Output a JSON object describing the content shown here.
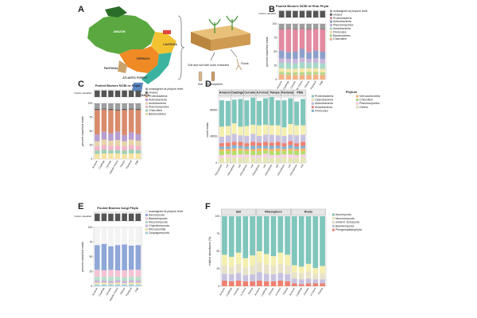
{
  "map": {
    "panel": "A",
    "labels": [
      "AMAZON",
      "CAATINGA",
      "CERRADO",
      "PANTANAL",
      "ATLANTIC FOREST",
      "PAMPA",
      "Soil and soil with roots extracted",
      "Soil",
      "Rhizosphere",
      "Roots"
    ]
  },
  "chart_data": [
    {
      "type": "stacked_bar",
      "panel": "B",
      "title": "Pooled Biomes NCBI nr+Euk Phyla",
      "ylabel": "percent classified reads",
      "categories": [
        "Amazon",
        "Caatinga",
        "Cerrado",
        "Atlantic Forest",
        "Pampa",
        "Pantanal",
        "PNB"
      ],
      "fraction_classified": {
        "label": "fraction classified",
        "ylim": [
          0,
          1
        ],
        "values": [
          0.92,
          0.93,
          0.91,
          0.92,
          0.93,
          0.92,
          0.92
        ]
      },
      "ylim": [
        0,
        100
      ],
      "yticks": [
        0,
        25,
        50,
        75,
        100
      ],
      "series": [
        {
          "name": "unassigned at phylum level",
          "color": "#9e9e9e",
          "values": [
            9,
            8,
            9,
            8,
            9,
            8,
            9
          ]
        },
        {
          "name": "viruses",
          "color": "#5c5c5c",
          "values": [
            1,
            1,
            1,
            1,
            1,
            1,
            1
          ]
        },
        {
          "name": "Proteobacteria",
          "color": "#e38aa0",
          "values": [
            38,
            42,
            40,
            36,
            41,
            39,
            40
          ]
        },
        {
          "name": "Actinobacteria",
          "color": "#8da0cb",
          "values": [
            14,
            12,
            13,
            16,
            12,
            14,
            13
          ]
        },
        {
          "name": "Planctomycetes",
          "color": "#c9b3d9",
          "values": [
            8,
            7,
            8,
            8,
            7,
            8,
            8
          ]
        },
        {
          "name": "Acidobacteria",
          "color": "#a6d8c8",
          "values": [
            10,
            11,
            10,
            11,
            10,
            10,
            10
          ]
        },
        {
          "name": "Firmicutes",
          "color": "#f7e6a5",
          "values": [
            6,
            6,
            6,
            7,
            6,
            6,
            6
          ]
        },
        {
          "name": "Bacteroidetes",
          "color": "#b8d88d",
          "values": [
            5,
            5,
            5,
            5,
            6,
            5,
            5
          ]
        },
        {
          "name": "Chloroflexi",
          "color": "#f4b183",
          "values": [
            9,
            8,
            8,
            8,
            8,
            9,
            8
          ]
        }
      ]
    },
    {
      "type": "stacked_bar",
      "panel": "C",
      "title": "Pooled Biomes NCBI nr Phyla",
      "ylabel": "percent classified reads",
      "categories": [
        "Amazon",
        "Caatinga",
        "Cerrado",
        "Atlantic Forest",
        "Pampa",
        "Pantanal",
        "PNB"
      ],
      "fraction_classified": {
        "label": "fraction classified",
        "ylim": [
          0,
          1
        ],
        "values": [
          0.9,
          0.91,
          0.9,
          0.89,
          0.9,
          0.91,
          0.9
        ]
      },
      "ylim": [
        0,
        100
      ],
      "yticks": [
        0,
        25,
        50,
        75,
        100
      ],
      "series": [
        {
          "name": "unassigned at phylum level",
          "color": "#9e9e9e",
          "values": [
            10,
            9,
            10,
            11,
            10,
            9,
            10
          ]
        },
        {
          "name": "viruses",
          "color": "#5c5c5c",
          "values": [
            2,
            2,
            2,
            2,
            2,
            2,
            2
          ]
        },
        {
          "name": "Proteobacteria",
          "color": "#d98b6b",
          "values": [
            44,
            40,
            42,
            38,
            45,
            41,
            43
          ]
        },
        {
          "name": "Actinobacteria",
          "color": "#b79ed1",
          "values": [
            12,
            14,
            13,
            15,
            11,
            13,
            12
          ]
        },
        {
          "name": "Acidobacteria",
          "color": "#e7d3a8",
          "values": [
            9,
            10,
            9,
            10,
            9,
            10,
            9
          ]
        },
        {
          "name": "Planctomycetes",
          "color": "#f2b6c6",
          "values": [
            8,
            8,
            8,
            8,
            8,
            8,
            8
          ]
        },
        {
          "name": "Chloroflexi",
          "color": "#9fcfb5",
          "values": [
            6,
            7,
            6,
            6,
            6,
            7,
            6
          ]
        },
        {
          "name": "Bacteroidetes",
          "color": "#f6e3a1",
          "values": [
            9,
            10,
            10,
            10,
            9,
            10,
            10
          ]
        }
      ]
    },
    {
      "type": "stacked_bar",
      "panel": "D",
      "legend_title": "Phylum",
      "ylabel": "count reads",
      "groups": [
        "Amazon",
        "Caatinga",
        "Cerrado",
        "A.Forest",
        "Pampa",
        "Pantanal",
        "PNB"
      ],
      "categories": [
        "rhizosphere",
        "soil",
        "rhizosphere",
        "soil",
        "rhizosphere",
        "soil",
        "rhizosphere",
        "soil",
        "rhizosphere",
        "soil",
        "rhizosphere",
        "soil",
        "rhizosphere",
        "soil"
      ],
      "ylim": [
        0,
        100000
      ],
      "yticks": [
        0,
        40000,
        80000
      ],
      "series": [
        {
          "name": "Proteobacteria",
          "color": "#7fc6bc",
          "values": [
            40000,
            38000,
            36000,
            42000,
            39000,
            41000,
            37000,
            40000,
            43000,
            38000,
            41000,
            39000,
            36000,
            40000
          ]
        },
        {
          "name": "Cyanobacteria",
          "color": "#f5f0b0",
          "values": [
            15000,
            14000,
            16000,
            13000,
            15000,
            14000,
            16000,
            15000,
            14000,
            15000,
            13000,
            16000,
            15000,
            14000
          ]
        },
        {
          "name": "Actinobacteria",
          "color": "#c8c2e0",
          "values": [
            10000,
            11000,
            12000,
            10000,
            11000,
            12000,
            10000,
            11000,
            12000,
            10000,
            11000,
            10000,
            12000,
            11000
          ]
        },
        {
          "name": "Acidobacteria",
          "color": "#f08070",
          "values": [
            5000,
            6000,
            5000,
            6000,
            5000,
            6000,
            5000,
            6000,
            5000,
            6000,
            5000,
            6000,
            5000,
            6000
          ]
        },
        {
          "name": "Firmicutes",
          "color": "#80b1d3",
          "values": [
            4000,
            4000,
            5000,
            4000,
            4000,
            5000,
            4000,
            4000,
            5000,
            4000,
            4000,
            5000,
            4000,
            4000
          ]
        },
        {
          "name": "Verrucomicrobia",
          "color": "#fdb462",
          "values": [
            3000,
            3000,
            4000,
            3000,
            3000,
            3000,
            4000,
            3000,
            3000,
            4000,
            3000,
            3000,
            3000,
            4000
          ]
        },
        {
          "name": "Chloroflexi",
          "color": "#b3de69",
          "values": [
            6000,
            5000,
            6000,
            6000,
            5000,
            6000,
            6000,
            5000,
            6000,
            6000,
            5000,
            6000,
            6000,
            5000
          ]
        },
        {
          "name": "Planctomycetes",
          "color": "#fccde5",
          "values": [
            4000,
            4000,
            4000,
            5000,
            4000,
            4000,
            4000,
            5000,
            4000,
            4000,
            4000,
            5000,
            4000,
            4000
          ]
        },
        {
          "name": "Others",
          "color": "#e5e5b5",
          "values": [
            8000,
            9000,
            8000,
            8000,
            9000,
            8000,
            8000,
            9000,
            8000,
            8000,
            9000,
            8000,
            8000,
            9000
          ]
        }
      ]
    },
    {
      "type": "stacked_bar",
      "panel": "E",
      "title": "Pooled Biomes fungi Phyla",
      "ylabel": "percent classified reads",
      "categories": [
        "Amazon",
        "Caatinga",
        "Cerrado",
        "Atlantic Forest",
        "Pampa",
        "Pantanal",
        "PNB"
      ],
      "fraction_classified": {
        "label": "fraction classified",
        "ylim": [
          0,
          1
        ],
        "values": [
          0.85,
          0.86,
          0.84,
          0.85,
          0.86,
          0.85,
          0.85
        ]
      },
      "ylim": [
        0,
        100
      ],
      "yticks": [
        0,
        25,
        50,
        75,
        100
      ],
      "series": [
        {
          "name": "unassigned at phylum level",
          "color": "#f3f3f3",
          "values": [
            30,
            28,
            32,
            30,
            29,
            31,
            30
          ]
        },
        {
          "name": "Ascomycota",
          "color": "#8ea7d8",
          "values": [
            42,
            45,
            40,
            43,
            44,
            41,
            42
          ]
        },
        {
          "name": "Basidiomycota",
          "color": "#f5c4d4",
          "values": [
            12,
            11,
            12,
            11,
            12,
            12,
            12
          ]
        },
        {
          "name": "Mucoromycota",
          "color": "#b6dfc9",
          "values": [
            6,
            6,
            7,
            6,
            6,
            6,
            6
          ]
        },
        {
          "name": "Chytridiomycota",
          "color": "#c9b3d9",
          "values": [
            4,
            4,
            4,
            4,
            4,
            4,
            4
          ]
        },
        {
          "name": "Microsporidia",
          "color": "#f7e6a5",
          "values": [
            3,
            3,
            2,
            3,
            2,
            3,
            3
          ]
        },
        {
          "name": "Zoopagomycota",
          "color": "#9fd0e6",
          "values": [
            3,
            3,
            3,
            3,
            3,
            3,
            3
          ]
        }
      ]
    },
    {
      "type": "stacked_bar",
      "panel": "F",
      "ylabel": "relative abundance (%)",
      "groups": [
        "Soil",
        "Rhizosphere",
        "Roots"
      ],
      "categories": [
        "Amazon",
        "Caatinga",
        "Cerrado",
        "A.Forest",
        "Pampa",
        "Amazon",
        "Caatinga",
        "Cerrado",
        "A.Forest",
        "Pampa",
        "Amazon",
        "Caatinga",
        "Cerrado",
        "A.Forest",
        "Pampa"
      ],
      "ylim": [
        0,
        100
      ],
      "yticks": [
        0,
        25,
        50,
        75,
        100
      ],
      "series": [
        {
          "name": "Ascomycota",
          "color": "#7fc6bc",
          "values": [
            55,
            58,
            52,
            60,
            56,
            50,
            54,
            57,
            52,
            55,
            70,
            72,
            68,
            74,
            71
          ]
        },
        {
          "name": "Mucoromycota",
          "color": "#f5f0b0",
          "values": [
            15,
            14,
            16,
            13,
            15,
            16,
            15,
            14,
            16,
            15,
            10,
            9,
            11,
            8,
            10
          ]
        },
        {
          "name": "unident. Eukaryota",
          "color": "#e8e3c8",
          "values": [
            12,
            11,
            13,
            11,
            12,
            14,
            13,
            12,
            13,
            13,
            9,
            9,
            10,
            8,
            9
          ]
        },
        {
          "name": "Basidiomycota",
          "color": "#c8c2e0",
          "values": [
            10,
            10,
            11,
            9,
            10,
            12,
            11,
            10,
            11,
            10,
            7,
            7,
            7,
            6,
            6
          ]
        },
        {
          "name": "Phragmoplastophyta",
          "color": "#f08070",
          "values": [
            8,
            7,
            8,
            7,
            7,
            8,
            7,
            7,
            8,
            7,
            4,
            3,
            4,
            4,
            4
          ]
        }
      ]
    }
  ]
}
